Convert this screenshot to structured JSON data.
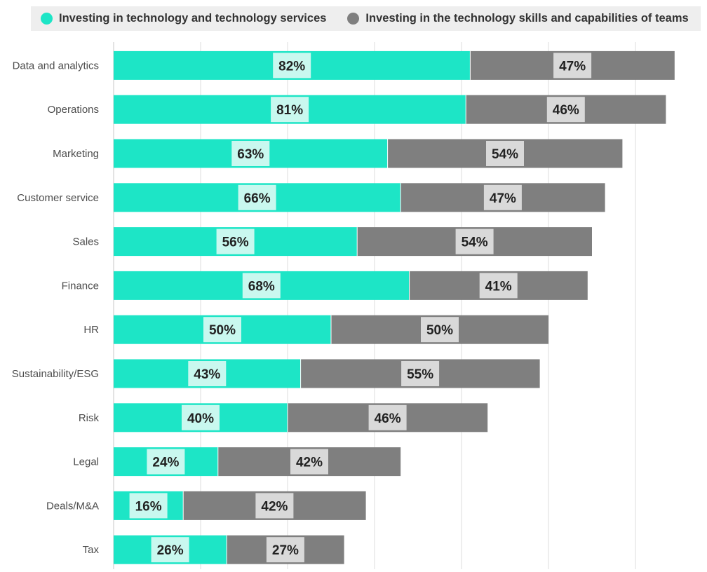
{
  "legend": {
    "items": [
      {
        "label": "Investing in technology and technology services",
        "color": "#1de5c6"
      },
      {
        "label": "Investing in the technology skills and capabilities of teams",
        "color": "#7f7f7f"
      }
    ]
  },
  "chart_data": {
    "type": "bar",
    "orientation": "horizontal",
    "stacked": true,
    "categories": [
      "Data and analytics",
      "Operations",
      "Marketing",
      "Customer service",
      "Sales",
      "Finance",
      "HR",
      "Sustainability/ESG",
      "Risk",
      "Legal",
      "Deals/M&A",
      "Tax"
    ],
    "series": [
      {
        "name": "Investing in technology and technology services",
        "color": "#1de5c6",
        "label_bg": "#c9f8ef",
        "values": [
          82,
          81,
          63,
          66,
          56,
          68,
          50,
          43,
          40,
          24,
          16,
          26
        ],
        "labels": [
          "82%",
          "81%",
          "63%",
          "66%",
          "56%",
          "68%",
          "50%",
          "43%",
          "40%",
          "24%",
          "16%",
          "26%"
        ]
      },
      {
        "name": "Investing in the technology skills and capabilities of teams",
        "color": "#7f7f7f",
        "label_bg": "#d9d9d9",
        "values": [
          47,
          46,
          54,
          47,
          54,
          41,
          50,
          55,
          46,
          42,
          42,
          27
        ],
        "labels": [
          "47%",
          "46%",
          "54%",
          "47%",
          "54%",
          "41%",
          "50%",
          "55%",
          "46%",
          "42%",
          "42%",
          "27%"
        ]
      }
    ],
    "xlim": [
      0,
      140
    ],
    "grid": true,
    "legend_position": "top"
  }
}
